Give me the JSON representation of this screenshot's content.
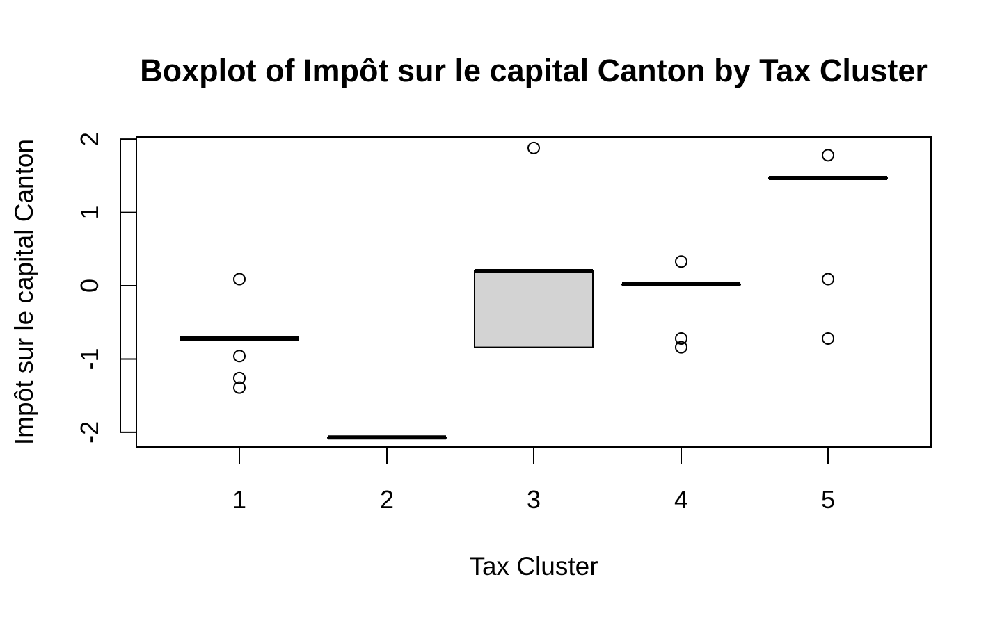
{
  "chart_data": {
    "type": "boxplot",
    "title": "Boxplot of Impôt sur le capital Canton by Tax Cluster",
    "xlabel": "Tax Cluster",
    "ylabel": "Impôt sur le capital Canton",
    "categories": [
      "1",
      "2",
      "3",
      "4",
      "5"
    ],
    "ylim": [
      -2.2,
      2.03
    ],
    "y_ticks": [
      -2,
      -1,
      0,
      1,
      2
    ],
    "grid": false,
    "box_fill": "#d3d3d3",
    "boxes": [
      {
        "category": "1",
        "q1": -0.745,
        "median": -0.72,
        "q3": -0.715,
        "whisker_low": -0.745,
        "whisker_high": -0.715,
        "outliers": [
          0.09,
          -0.96,
          -1.26,
          -1.39
        ]
      },
      {
        "category": "2",
        "q1": -2.07,
        "median": -2.07,
        "q3": -2.07,
        "whisker_low": -2.07,
        "whisker_high": -2.07,
        "outliers": []
      },
      {
        "category": "3",
        "q1": -0.84,
        "median": 0.2,
        "q3": 0.2,
        "whisker_low": -0.84,
        "whisker_high": 0.2,
        "outliers": [
          1.88
        ]
      },
      {
        "category": "4",
        "q1": 0.02,
        "median": 0.02,
        "q3": 0.02,
        "whisker_low": 0.02,
        "whisker_high": 0.02,
        "outliers": [
          0.33,
          -0.72,
          -0.84
        ]
      },
      {
        "category": "5",
        "q1": 1.47,
        "median": 1.47,
        "q3": 1.47,
        "whisker_low": 1.47,
        "whisker_high": 1.47,
        "outliers": [
          1.78,
          0.09,
          -0.72
        ]
      }
    ]
  }
}
